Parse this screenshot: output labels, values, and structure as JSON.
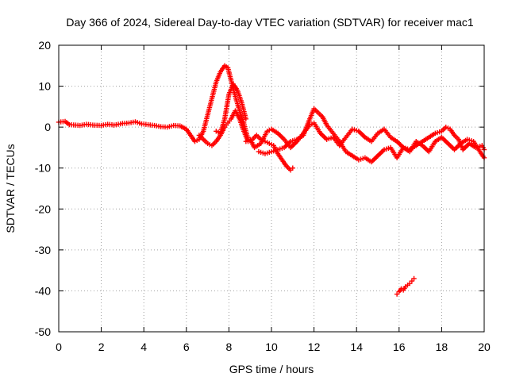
{
  "chart_data": {
    "type": "scatter",
    "title": "Day 366 of 2024, Sidereal Day-to-day VTEC variation (SDTVAR) for receiver mac1",
    "xlabel": "GPS time / hours",
    "ylabel": "SDTVAR / TECUs",
    "xlim": [
      0,
      20
    ],
    "ylim": [
      -50,
      20
    ],
    "grid": true,
    "x_ticks": [
      0,
      2,
      4,
      6,
      8,
      10,
      12,
      14,
      16,
      18,
      20
    ],
    "x_tick_labels": [
      "0",
      "2",
      "4",
      "6",
      "8",
      "10",
      "12",
      "14",
      "16",
      "18",
      "20"
    ],
    "y_ticks": [
      20,
      10,
      0,
      -10,
      -20,
      -30,
      -40,
      -50
    ],
    "y_tick_labels": [
      "20",
      "10",
      "0",
      "-10",
      "-20",
      "-30",
      "-40",
      "-50"
    ],
    "marker": "plus",
    "series": [
      {
        "name": "SDTVAR",
        "color": "#ff0000",
        "segments": [
          {
            "x": [
              0.0,
              0.3,
              0.5,
              0.8,
              1.0,
              1.3,
              1.6,
              2.0,
              2.3,
              2.6,
              3.0,
              3.3,
              3.6,
              3.9,
              4.2,
              4.5,
              4.8,
              5.1,
              5.4,
              5.7,
              6.0
            ],
            "y": [
              1.2,
              1.4,
              0.6,
              0.5,
              0.4,
              0.7,
              0.5,
              0.4,
              0.7,
              0.5,
              0.9,
              1.0,
              1.3,
              0.8,
              0.6,
              0.4,
              0.1,
              0.0,
              0.4,
              0.3,
              -0.5
            ]
          },
          {
            "x": [
              6.0,
              6.2,
              6.4,
              6.6,
              6.8,
              7.0,
              7.2,
              7.4,
              7.6,
              7.8,
              7.95,
              8.1,
              8.3,
              8.5,
              8.7,
              8.9
            ],
            "y": [
              -0.5,
              -2.0,
              -3.5,
              -3.0,
              -1.0,
              3.0,
              7.0,
              11.0,
              13.5,
              15.0,
              14.5,
              11.5,
              7.5,
              4.0,
              1.0,
              -3.0
            ]
          },
          {
            "x": [
              6.6,
              6.8,
              7.0,
              7.2,
              7.4,
              7.6,
              7.8,
              7.95,
              8.1,
              8.3,
              8.5,
              8.7,
              8.9,
              9.1,
              9.3,
              9.5,
              9.7,
              9.9,
              10.1,
              10.3,
              10.5,
              10.7,
              10.9,
              11.0
            ],
            "y": [
              -2.0,
              -3.0,
              -4.0,
              -4.5,
              -3.5,
              -2.0,
              0.0,
              1.0,
              2.0,
              4.0,
              2.0,
              -1.0,
              -3.5,
              -3.0,
              -2.0,
              -3.0,
              -3.5,
              -4.0,
              -4.5,
              -6.5,
              -8.0,
              -9.5,
              -10.5,
              -10.0
            ]
          },
          {
            "x": [
              7.4,
              7.6,
              7.8,
              8.0,
              8.2,
              8.4,
              8.6,
              8.8
            ],
            "y": [
              -1.0,
              -1.5,
              2.0,
              8.0,
              10.5,
              9.0,
              6.0,
              2.0
            ]
          },
          {
            "x": [
              8.8,
              9.0,
              9.2,
              9.5,
              9.8,
              10.0,
              10.3,
              10.6,
              10.9,
              11.2,
              11.5,
              11.8,
              12.0,
              12.3,
              12.6,
              12.9,
              13.2,
              13.5,
              13.8,
              14.1,
              14.4,
              14.7,
              15.0,
              15.3,
              15.6,
              15.9,
              16.2,
              16.5,
              16.8,
              17.1,
              17.4,
              17.7,
              18.0,
              18.3,
              18.6,
              18.9,
              19.2,
              19.5,
              19.8,
              20.0
            ],
            "y": [
              -3.5,
              -3.0,
              -5.0,
              -4.0,
              -1.0,
              -0.5,
              -1.5,
              -3.0,
              -5.0,
              -3.5,
              -1.5,
              0.5,
              1.0,
              -1.5,
              -3.0,
              -2.5,
              -4.5,
              -2.5,
              -0.5,
              -1.0,
              -2.5,
              -3.5,
              -1.5,
              -0.5,
              -2.5,
              -3.5,
              -5.0,
              -6.0,
              -3.5,
              -4.5,
              -6.0,
              -3.5,
              -2.5,
              -4.0,
              -5.5,
              -4.0,
              -3.0,
              -3.5,
              -6.0,
              -7.5
            ]
          },
          {
            "x": [
              9.4,
              9.7,
              10.0,
              10.3,
              10.6,
              10.9,
              11.2,
              11.5,
              11.8,
              12.0,
              12.2,
              12.4,
              12.6,
              12.9,
              13.2,
              13.5,
              13.8,
              14.1,
              14.4,
              14.7,
              15.0,
              15.3,
              15.6,
              15.9,
              16.2,
              16.5,
              16.8,
              17.1,
              17.4,
              17.7,
              18.0,
              18.2,
              18.4,
              18.6,
              18.8,
              19.0,
              19.3,
              19.6,
              19.9,
              20.0
            ],
            "y": [
              -6.0,
              -6.5,
              -6.0,
              -5.5,
              -5.0,
              -3.5,
              -3.0,
              -2.0,
              2.0,
              4.5,
              3.5,
              2.5,
              0.5,
              -1.5,
              -3.5,
              -6.0,
              -7.0,
              -8.0,
              -7.5,
              -8.5,
              -7.0,
              -5.5,
              -5.0,
              -7.5,
              -5.0,
              -5.5,
              -4.5,
              -3.5,
              -2.5,
              -1.5,
              -1.0,
              0.0,
              -0.5,
              -2.0,
              -3.0,
              -5.5,
              -4.0,
              -5.0,
              -4.5,
              -5.5
            ]
          },
          {
            "x": [
              15.9,
              16.0,
              16.1,
              16.2,
              16.3,
              16.4,
              16.5,
              16.6,
              16.7
            ],
            "y": [
              -40.8,
              -40.2,
              -39.5,
              -39.8,
              -39.0,
              -38.6,
              -38.2,
              -37.6,
              -37.0
            ]
          }
        ]
      }
    ]
  }
}
